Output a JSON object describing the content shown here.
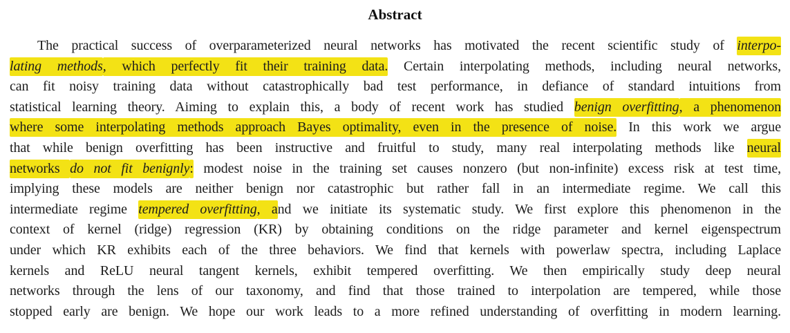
{
  "page": {
    "background": "#ffffff",
    "text_color": "#1c1c1c",
    "highlight_color": "#f3e215"
  },
  "heading": {
    "title": "Abstract"
  },
  "abstract": {
    "lines": [
      {
        "indent": true,
        "segments": [
          {
            "text": "The practical success of overparameterized neural networks has motivated the recent scientific study of ",
            "italic": false,
            "highlight": false
          },
          {
            "text": "interpo-",
            "italic": true,
            "highlight": true
          }
        ]
      },
      {
        "indent": false,
        "segments": [
          {
            "text": "lating methods",
            "italic": true,
            "highlight": true
          },
          {
            "text": ", which perfectly fit their training data.",
            "italic": false,
            "highlight": true
          },
          {
            "text": " Certain interpolating methods, including neural networks,",
            "italic": false,
            "highlight": false
          }
        ]
      },
      {
        "indent": false,
        "segments": [
          {
            "text": "can fit noisy training data without catastrophically bad test performance, in defiance of standard intuitions from",
            "italic": false,
            "highlight": false
          }
        ]
      },
      {
        "indent": false,
        "segments": [
          {
            "text": "statistical learning theory. Aiming to explain this, a body of recent work has studied ",
            "italic": false,
            "highlight": false
          },
          {
            "text": "benign overfitting",
            "italic": true,
            "highlight": true
          },
          {
            "text": ", a phenomenon",
            "italic": false,
            "highlight": true
          }
        ]
      },
      {
        "indent": false,
        "segments": [
          {
            "text": "where some interpolating methods approach Bayes optimality, even in the presence of noise.",
            "italic": false,
            "highlight": true
          },
          {
            "text": " In this work we argue",
            "italic": false,
            "highlight": false
          }
        ]
      },
      {
        "indent": false,
        "segments": [
          {
            "text": "that while benign overfitting has been instructive and fruitful to study, many real interpolating methods like ",
            "italic": false,
            "highlight": false
          },
          {
            "text": "neural",
            "italic": false,
            "highlight": true
          }
        ]
      },
      {
        "indent": false,
        "segments": [
          {
            "text": "networks ",
            "italic": false,
            "highlight": true
          },
          {
            "text": "do not fit benignly",
            "italic": true,
            "highlight": true
          },
          {
            "text": ":",
            "italic": false,
            "highlight": true
          },
          {
            "text": " modest noise in the training set causes nonzero (but non-infinite) excess risk at test time,",
            "italic": false,
            "highlight": false
          }
        ]
      },
      {
        "indent": false,
        "segments": [
          {
            "text": "implying these models are neither benign nor catastrophic but rather fall in an intermediate regime. We call this",
            "italic": false,
            "highlight": false
          }
        ]
      },
      {
        "indent": false,
        "segments": [
          {
            "text": "intermediate regime ",
            "italic": false,
            "highlight": false
          },
          {
            "text": "tempered overfitting",
            "italic": true,
            "highlight": true
          },
          {
            "text": ", a",
            "italic": false,
            "highlight": true
          },
          {
            "text": "nd we initiate its systematic study. We first explore this phenomenon in the",
            "italic": false,
            "highlight": false
          }
        ]
      },
      {
        "indent": false,
        "segments": [
          {
            "text": "context of kernel (ridge) regression (KR) by obtaining conditions on the ridge parameter and kernel eigenspectrum",
            "italic": false,
            "highlight": false
          }
        ]
      },
      {
        "indent": false,
        "segments": [
          {
            "text": "under which KR exhibits each of the three behaviors. We find that kernels with powerlaw spectra, including Laplace",
            "italic": false,
            "highlight": false
          }
        ]
      },
      {
        "indent": false,
        "segments": [
          {
            "text": "kernels and ReLU neural tangent kernels, exhibit tempered overfitting. We then empirically study deep neural",
            "italic": false,
            "highlight": false
          }
        ]
      },
      {
        "indent": false,
        "segments": [
          {
            "text": "networks through the lens of our taxonomy, and find that those trained to interpolation are tempered, while those",
            "italic": false,
            "highlight": false
          }
        ]
      },
      {
        "indent": false,
        "segments": [
          {
            "text": "stopped early are benign. We hope our work leads to a more refined understanding of overfitting in modern learning.",
            "italic": false,
            "highlight": false
          }
        ]
      }
    ]
  }
}
